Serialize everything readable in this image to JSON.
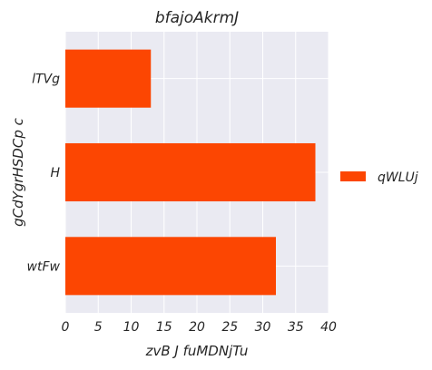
{
  "chart_data": {
    "type": "bar",
    "orientation": "horizontal",
    "title": "bfajoAkrmJ",
    "xlabel": "zvB J fuMDNjTu",
    "ylabel": "gCdYgrHSDCp c",
    "categories": [
      "lTVg",
      "H",
      "wtFw"
    ],
    "series": [
      {
        "name": "qWLUj",
        "values": [
          13,
          38,
          32
        ],
        "color": "#fc4602"
      }
    ],
    "xlim": [
      0,
      40
    ],
    "xticks": [
      "0",
      "5",
      "10",
      "15",
      "20",
      "25",
      "30",
      "35",
      "40"
    ],
    "grid": true,
    "legend_position": "right",
    "background": "#eaeaf2"
  }
}
